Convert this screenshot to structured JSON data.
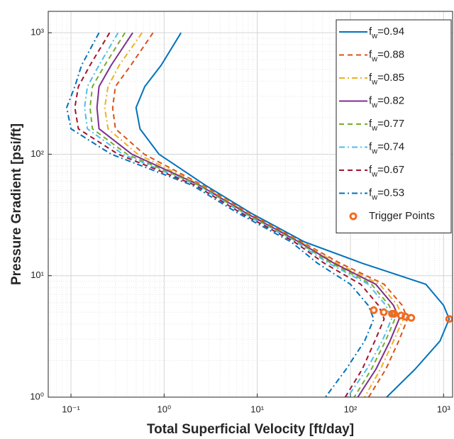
{
  "chart_data": {
    "type": "line",
    "xscale": "log",
    "yscale": "log",
    "grid": true,
    "minor_grid": true,
    "legend_location": "northeast",
    "x_label": "Total Superficial Velocity [ft/day]",
    "y_label": "Pressure Gradient [psi/ft]",
    "xlim": [
      0.057,
      1250
    ],
    "ylim": [
      1,
      1500
    ],
    "xticks": [
      {
        "value": 0.1,
        "label": "10⁻¹"
      },
      {
        "value": 1,
        "label": "10⁰"
      },
      {
        "value": 10,
        "label": "10¹"
      },
      {
        "value": 100,
        "label": "10²"
      },
      {
        "value": 1000,
        "label": "10³"
      }
    ],
    "yticks": [
      {
        "value": 1,
        "label": "10⁰"
      },
      {
        "value": 10,
        "label": "10¹"
      },
      {
        "value": 100,
        "label": "10²"
      },
      {
        "value": 1000,
        "label": "10³"
      }
    ],
    "series": [
      {
        "name": "fw=0.94",
        "color": "#0072BD",
        "dash": "solid",
        "x": [
          1.52,
          0.93,
          0.62,
          0.5,
          0.55,
          0.88,
          2.77,
          8.7,
          32,
          132,
          645,
          1000,
          1150,
          916,
          495,
          245
        ],
        "values": [
          1000,
          540,
          361,
          242,
          162,
          100,
          55.5,
          32.5,
          19,
          12.7,
          8.5,
          5.7,
          4.4,
          2.9,
          1.7,
          1
        ]
      },
      {
        "name": "fw=0.88",
        "color": "#D95319",
        "dash": "dashed",
        "x": [
          0.76,
          0.44,
          0.3,
          0.28,
          0.3,
          0.61,
          2.6,
          8.3,
          30,
          77,
          230,
          360,
          410,
          330,
          240,
          157
        ],
        "values": [
          1000,
          540,
          361,
          242,
          162,
          100,
          55.5,
          32.5,
          19,
          12.7,
          8.5,
          5.7,
          4.4,
          2.9,
          1.7,
          1
        ]
      },
      {
        "name": "fw=0.85",
        "color": "#EDB120",
        "dash": "dashdot",
        "x": [
          0.58,
          0.33,
          0.25,
          0.23,
          0.25,
          0.52,
          2.5,
          8.0,
          29,
          71,
          206,
          320,
          370,
          290,
          210,
          142
        ],
        "values": [
          1000,
          540,
          361,
          242,
          162,
          100,
          55.5,
          32.5,
          19,
          12.7,
          8.5,
          5.7,
          4.4,
          2.9,
          1.7,
          1
        ]
      },
      {
        "name": "fw=0.82",
        "color": "#7E2F8E",
        "dash": "solid",
        "x": [
          0.46,
          0.27,
          0.2,
          0.19,
          0.2,
          0.45,
          2.4,
          7.7,
          28,
          66,
          187,
          290,
          334,
          266,
          188,
          120
        ],
        "values": [
          1000,
          540,
          361,
          242,
          162,
          100,
          55.5,
          32.5,
          19,
          12.7,
          8.5,
          5.7,
          4.4,
          2.9,
          1.7,
          1
        ]
      },
      {
        "name": "fw=0.77",
        "color": "#77AC30",
        "dash": "dashed",
        "x": [
          0.38,
          0.23,
          0.17,
          0.16,
          0.17,
          0.4,
          2.35,
          7.4,
          27,
          62,
          168,
          260,
          300,
          238,
          168,
          110
        ],
        "values": [
          1000,
          540,
          361,
          242,
          162,
          100,
          55.5,
          32.5,
          19,
          12.7,
          8.5,
          5.7,
          4.4,
          2.9,
          1.7,
          1
        ]
      },
      {
        "name": "fw=0.74",
        "color": "#4DBEEE",
        "dash": "dashdot",
        "x": [
          0.32,
          0.2,
          0.15,
          0.14,
          0.15,
          0.36,
          2.27,
          7.1,
          26,
          58,
          155,
          240,
          276,
          220,
          150,
          93
        ],
        "values": [
          1000,
          540,
          361,
          242,
          162,
          100,
          55.5,
          32.5,
          19,
          12.7,
          8.5,
          5.7,
          4.4,
          2.9,
          1.7,
          1
        ]
      },
      {
        "name": "fw=0.67",
        "color": "#A2142F",
        "dash": "dashed",
        "x": [
          0.26,
          0.16,
          0.12,
          0.11,
          0.12,
          0.32,
          2.16,
          6.8,
          25,
          52,
          129,
          200,
          230,
          183,
          134,
          88
        ],
        "values": [
          1000,
          540,
          361,
          242,
          162,
          100,
          55.5,
          32.5,
          19,
          12.7,
          8.5,
          5.7,
          4.4,
          2.9,
          1.7,
          1
        ]
      },
      {
        "name": "fw=0.53",
        "color": "#0072BD",
        "dash": "dashdot",
        "x": [
          0.2,
          0.13,
          0.11,
          0.09,
          0.1,
          0.27,
          2.0,
          6.3,
          23,
          44,
          100,
          155,
          178,
          142,
          90,
          54
        ],
        "values": [
          1000,
          540,
          361,
          242,
          162,
          100,
          55.5,
          32.5,
          19,
          12.7,
          8.5,
          5.7,
          4.4,
          2.9,
          1.7,
          1
        ]
      }
    ],
    "trigger_points": {
      "name": "Trigger Points",
      "color": "#F26B21",
      "x": [
        178,
        228,
        280,
        295,
        350,
        390,
        450,
        1150
      ],
      "values": [
        5.2,
        5.0,
        4.85,
        4.85,
        4.7,
        4.6,
        4.5,
        4.4
      ]
    }
  }
}
